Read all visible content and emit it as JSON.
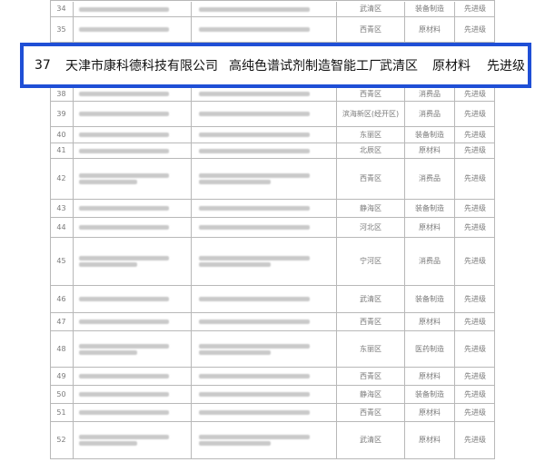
{
  "highlight": {
    "number": "37",
    "company": "天津市康科德科技有限公司",
    "project": "高纯色谱试剂制造智能工厂",
    "district": "武清区",
    "industry": "原材料",
    "level": "先进级"
  },
  "rows": [
    {
      "number": "34",
      "district": "武清区",
      "industry": "装备制造",
      "level": "先进级"
    },
    {
      "number": "35",
      "district": "西青区",
      "industry": "原材料",
      "level": "先进级"
    },
    {
      "number": "38",
      "district": "西青区",
      "industry": "消费品",
      "level": "先进级"
    },
    {
      "number": "39",
      "district": "滨海新区(经开区)",
      "industry": "消费品",
      "level": "先进级"
    },
    {
      "number": "40",
      "district": "东丽区",
      "industry": "装备制造",
      "level": "先进级"
    },
    {
      "number": "41",
      "district": "北辰区",
      "industry": "原材料",
      "level": "先进级"
    },
    {
      "number": "42",
      "district": "西青区",
      "industry": "消费品",
      "level": "先进级"
    },
    {
      "number": "43",
      "district": "静海区",
      "industry": "装备制造",
      "level": "先进级"
    },
    {
      "number": "44",
      "district": "河北区",
      "industry": "原材料",
      "level": "先进级"
    },
    {
      "number": "45",
      "district": "宁河区",
      "industry": "消费品",
      "level": "先进级"
    },
    {
      "number": "46",
      "district": "武清区",
      "industry": "装备制造",
      "level": "先进级"
    },
    {
      "number": "47",
      "district": "西青区",
      "industry": "原材料",
      "level": "先进级"
    },
    {
      "number": "48",
      "district": "东丽区",
      "industry": "医药制造",
      "level": "先进级"
    },
    {
      "number": "49",
      "district": "西青区",
      "industry": "原材料",
      "level": "先进级"
    },
    {
      "number": "50",
      "district": "静海区",
      "industry": "装备制造",
      "level": "先进级"
    },
    {
      "number": "51",
      "district": "西青区",
      "industry": "原材料",
      "level": "先进级"
    },
    {
      "number": "52",
      "district": "武清区",
      "industry": "原材料",
      "level": "先进级"
    }
  ]
}
